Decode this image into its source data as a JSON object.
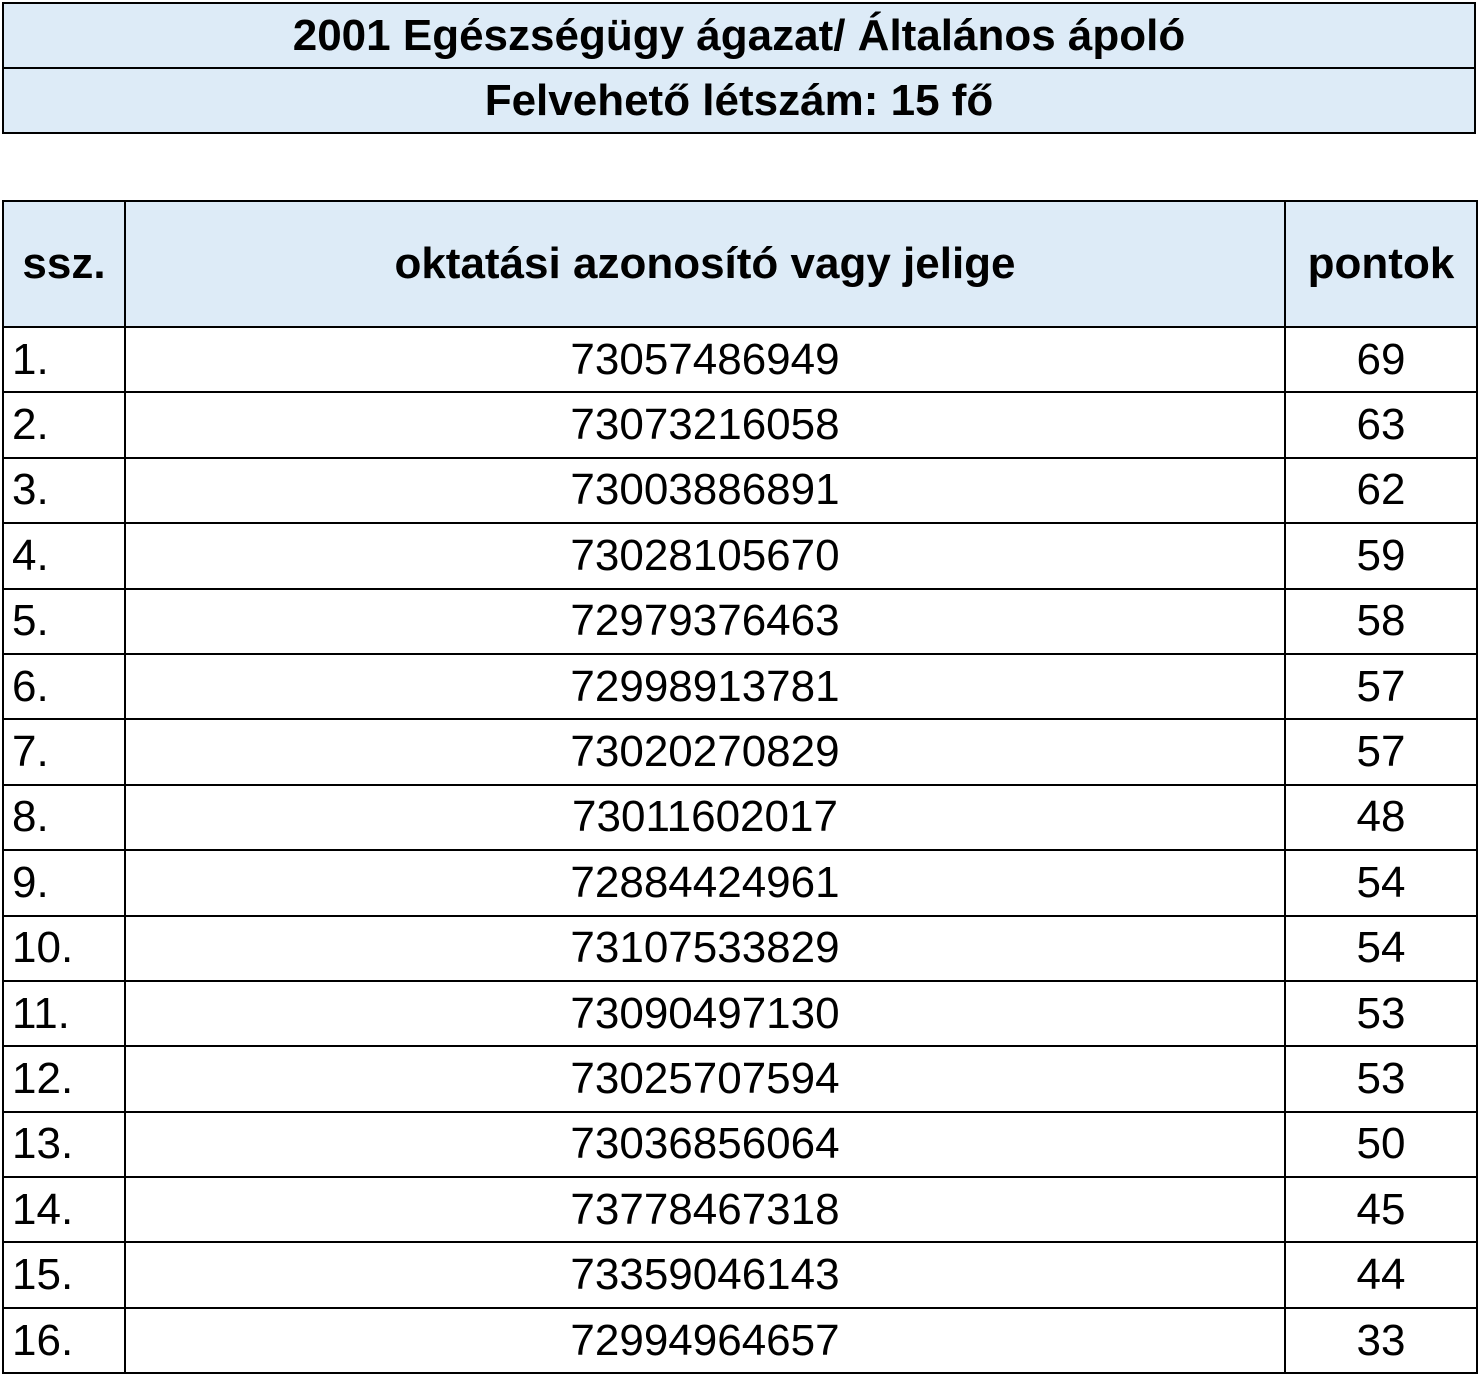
{
  "title": "2001 Egészségügy ágazat/ Általános ápoló",
  "subtitle": "Felvehető létszám: 15 fő",
  "table": {
    "headers": [
      "ssz.",
      "oktatási azonosító vagy jelige",
      "pontok"
    ],
    "rows": [
      [
        "1.",
        "73057486949",
        "69"
      ],
      [
        "2.",
        "73073216058",
        "63"
      ],
      [
        "3.",
        "73003886891",
        "62"
      ],
      [
        "4.",
        "73028105670",
        "59"
      ],
      [
        "5.",
        "72979376463",
        "58"
      ],
      [
        "6.",
        "72998913781",
        "57"
      ],
      [
        "7.",
        "73020270829",
        "57"
      ],
      [
        "8.",
        "73011602017",
        "48"
      ],
      [
        "9.",
        "72884424961",
        "54"
      ],
      [
        "10.",
        "73107533829",
        "54"
      ],
      [
        "11.",
        "73090497130",
        "53"
      ],
      [
        "12.",
        "73025707594",
        "53"
      ],
      [
        "13.",
        "73036856064",
        "50"
      ],
      [
        "14.",
        "73778467318",
        "45"
      ],
      [
        "15.",
        "73359046143",
        "44"
      ],
      [
        "16.",
        "72994964657",
        "33"
      ]
    ]
  },
  "colors": {
    "header_bg": "#DDEBF7"
  }
}
